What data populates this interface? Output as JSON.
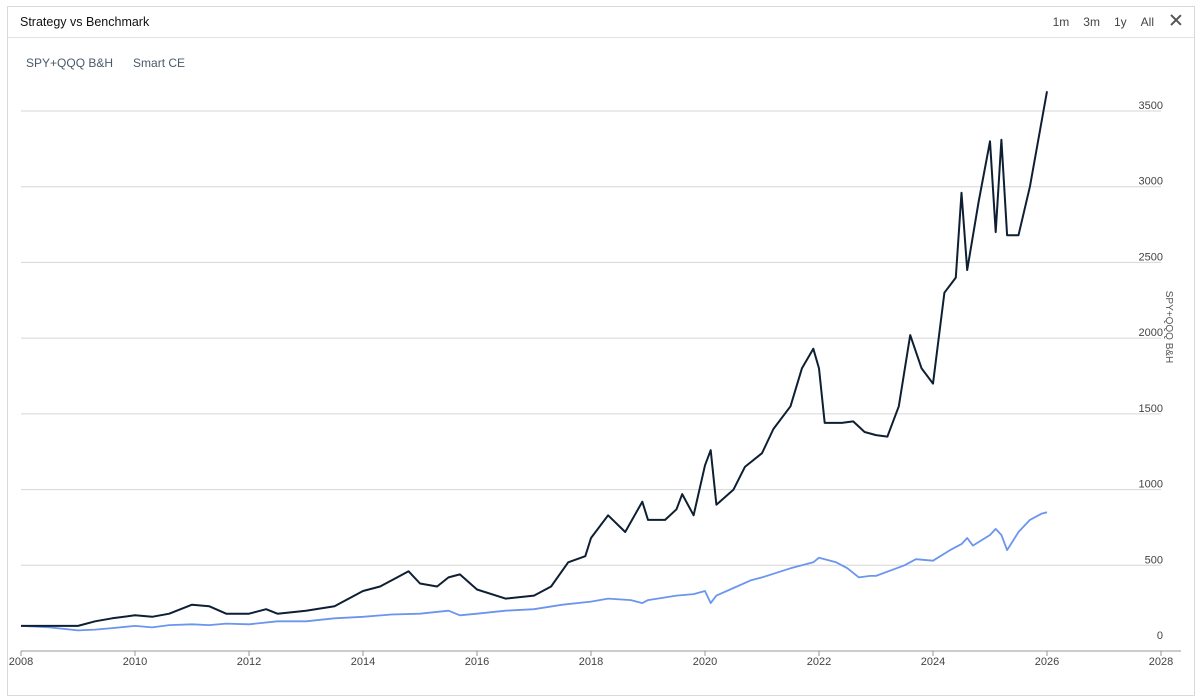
{
  "panel": {
    "title": "Strategy vs Benchmark",
    "ranges": [
      "1m",
      "3m",
      "1y",
      "All"
    ]
  },
  "colors": {
    "strategy": "#0f1f33",
    "benchmark": "#6b95ee"
  },
  "chart_data": {
    "type": "line",
    "xlabel": "",
    "ylabel": "SPY+QQQ B&H",
    "xlim": [
      2008,
      2028
    ],
    "ylim": [
      0,
      3700
    ],
    "x_ticks": [
      2008,
      2010,
      2012,
      2014,
      2016,
      2018,
      2020,
      2022,
      2024,
      2026,
      2028
    ],
    "y_ticks": [
      0,
      500,
      1000,
      1500,
      2000,
      2500,
      3000,
      3500
    ],
    "grid": true,
    "legend": "top-left",
    "series": [
      {
        "name": "SPY+QQQ B&H",
        "color": "#6b95ee",
        "x": [
          2008.0,
          2008.5,
          2009.0,
          2009.3,
          2009.6,
          2010.0,
          2010.3,
          2010.6,
          2011.0,
          2011.3,
          2011.6,
          2012.0,
          2012.5,
          2013.0,
          2013.5,
          2014.0,
          2014.5,
          2015.0,
          2015.5,
          2015.7,
          2016.0,
          2016.5,
          2017.0,
          2017.5,
          2018.0,
          2018.3,
          2018.7,
          2018.9,
          2019.0,
          2019.5,
          2019.8,
          2020.0,
          2020.1,
          2020.2,
          2020.5,
          2020.8,
          2021.0,
          2021.5,
          2021.9,
          2022.0,
          2022.3,
          2022.5,
          2022.7,
          2022.9,
          2023.0,
          2023.5,
          2023.7,
          2024.0,
          2024.3,
          2024.5,
          2024.6,
          2024.7,
          2025.0,
          2025.1,
          2025.2,
          2025.3,
          2025.5,
          2025.7,
          2025.9,
          2026.0
        ],
        "values": [
          100,
          90,
          70,
          75,
          85,
          100,
          90,
          105,
          110,
          105,
          115,
          110,
          130,
          130,
          150,
          160,
          175,
          180,
          200,
          170,
          180,
          200,
          210,
          240,
          260,
          280,
          270,
          250,
          270,
          300,
          310,
          330,
          250,
          300,
          350,
          400,
          420,
          480,
          520,
          550,
          520,
          480,
          420,
          430,
          430,
          500,
          540,
          530,
          600,
          640,
          680,
          630,
          700,
          740,
          700,
          600,
          720,
          800,
          840,
          850
        ]
      },
      {
        "name": "Smart CE",
        "color": "#0f1f33",
        "x": [
          2008.0,
          2009.0,
          2009.3,
          2009.6,
          2010.0,
          2010.3,
          2010.6,
          2011.0,
          2011.3,
          2011.6,
          2012.0,
          2012.3,
          2012.5,
          2013.0,
          2013.5,
          2014.0,
          2014.3,
          2014.6,
          2014.8,
          2015.0,
          2015.3,
          2015.5,
          2015.7,
          2016.0,
          2016.5,
          2017.0,
          2017.3,
          2017.6,
          2017.9,
          2018.0,
          2018.3,
          2018.6,
          2018.9,
          2019.0,
          2019.3,
          2019.5,
          2019.6,
          2019.8,
          2020.0,
          2020.1,
          2020.2,
          2020.5,
          2020.7,
          2021.0,
          2021.2,
          2021.5,
          2021.7,
          2021.9,
          2022.0,
          2022.1,
          2022.4,
          2022.6,
          2022.8,
          2023.0,
          2023.2,
          2023.4,
          2023.6,
          2023.8,
          2024.0,
          2024.2,
          2024.4,
          2024.5,
          2024.6,
          2024.8,
          2025.0,
          2025.1,
          2025.2,
          2025.3,
          2025.5,
          2025.7,
          2025.9,
          2026.0
        ],
        "values": [
          100,
          100,
          130,
          150,
          170,
          160,
          180,
          240,
          230,
          180,
          180,
          210,
          180,
          200,
          230,
          330,
          360,
          420,
          460,
          380,
          360,
          420,
          440,
          340,
          280,
          300,
          360,
          520,
          560,
          680,
          830,
          720,
          920,
          800,
          800,
          870,
          970,
          830,
          1160,
          1260,
          900,
          1000,
          1150,
          1240,
          1400,
          1550,
          1800,
          1930,
          1800,
          1440,
          1440,
          1450,
          1380,
          1360,
          1350,
          1550,
          2020,
          1800,
          1700,
          2300,
          2400,
          2960,
          2450,
          2900,
          3300,
          2700,
          3310,
          2680,
          2680,
          3000,
          3420,
          3630
        ]
      }
    ]
  }
}
